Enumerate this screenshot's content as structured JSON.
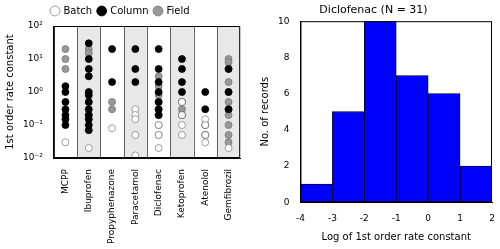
{
  "chart_data": [
    {
      "type": "scatter",
      "categories": [
        "MCPP",
        "Ibuprofen",
        "Propyphenazone",
        "Paracetamol",
        "Diclofenac",
        "Ketoprofen",
        "Atenolol",
        "Gemfibrozil"
      ],
      "y_label": "1st order rate constant",
      "log": "y",
      "grid": false,
      "legend": "top",
      "ylim": [
        0.01,
        100
      ],
      "yticks": [
        {
          "value": 0.01,
          "label": "10⁻²"
        },
        {
          "value": 0.1,
          "label": "10⁻¹"
        },
        {
          "value": 1,
          "label": "10⁰"
        },
        {
          "value": 10,
          "label": "10¹"
        },
        {
          "value": 100,
          "label": "10²"
        }
      ],
      "series": [
        {
          "name": "Batch",
          "color": "#ffffff",
          "marker": "circle",
          "x": [
            "MCPP",
            "Ibuprofen",
            "Propyphenazone",
            "Paracetamol",
            "Paracetamol",
            "Paracetamol",
            "Paracetamol",
            "Paracetamol",
            "Diclofenac",
            "Diclofenac",
            "Diclofenac",
            "Ketoprofen",
            "Ketoprofen",
            "Ketoprofen",
            "Ketoprofen",
            "Atenolol",
            "Atenolol",
            "Atenolol",
            "Atenolol",
            "Gemfibrozil"
          ],
          "values": [
            0.03,
            0.02,
            0.08,
            0.3,
            0.2,
            0.15,
            0.05,
            0.012,
            0.1,
            0.05,
            0.02,
            0.5,
            0.2,
            0.1,
            0.05,
            0.15,
            0.1,
            0.05,
            0.03,
            0.02
          ]
        },
        {
          "name": "Column",
          "color": "#000000",
          "marker": "circle",
          "x": [
            "MCPP",
            "MCPP",
            "MCPP",
            "MCPP",
            "MCPP",
            "MCPP",
            "MCPP",
            "Ibuprofen",
            "Ibuprofen",
            "Ibuprofen",
            "Ibuprofen",
            "Ibuprofen",
            "Ibuprofen",
            "Ibuprofen",
            "Ibuprofen",
            "Ibuprofen",
            "Ibuprofen",
            "Ibuprofen",
            "Ibuprofen",
            "Propyphenazone",
            "Propyphenazone",
            "Paracetamol",
            "Paracetamol",
            "Paracetamol",
            "Diclofenac",
            "Diclofenac",
            "Diclofenac",
            "Diclofenac",
            "Diclofenac",
            "Diclofenac",
            "Diclofenac",
            "Ketoprofen",
            "Ketoprofen",
            "Ketoprofen",
            "Ketoprofen",
            "Ketoprofen",
            "Ketoprofen",
            "Atenolol",
            "Atenolol",
            "Atenolol",
            "Atenolol",
            "Gemfibrozil",
            "Gemfibrozil",
            "Gemfibrozil"
          ],
          "values": [
            1.5,
            1,
            0.5,
            0.3,
            0.2,
            0.15,
            0.1,
            30,
            10,
            5,
            3,
            1,
            0.8,
            0.5,
            0.3,
            0.2,
            0.15,
            0.1,
            0.07,
            20,
            2,
            20,
            5,
            2,
            20,
            5,
            2,
            1,
            0.5,
            0.3,
            0.2,
            10,
            5,
            2,
            1,
            0.5,
            0.2,
            1,
            0.3,
            0.1,
            0.05,
            5,
            1,
            0.3
          ]
        },
        {
          "name": "Field",
          "color": "#999999",
          "marker": "circle",
          "x": [
            "MCPP",
            "MCPP",
            "MCPP",
            "Ibuprofen",
            "Ibuprofen",
            "Ibuprofen",
            "Ibuprofen",
            "Propyphenazone",
            "Propyphenazone",
            "Diclofenac",
            "Diclofenac",
            "Diclofenac",
            "Diclofenac",
            "Diclofenac",
            "Diclofenac",
            "Diclofenac",
            "Diclofenac",
            "Ketoprofen",
            "Gemfibrozil",
            "Gemfibrozil",
            "Gemfibrozil",
            "Gemfibrozil",
            "Gemfibrozil",
            "Gemfibrozil",
            "Gemfibrozil",
            "Gemfibrozil",
            "Gemfibrozil",
            "Gemfibrozil",
            "Gemfibrozil"
          ],
          "values": [
            20,
            10,
            5,
            20,
            15,
            0.5,
            0.2,
            0.5,
            0.3,
            3,
            1.5,
            0.8,
            0.5,
            0.3,
            0.2,
            0.1,
            0.05,
            0.3,
            10,
            8,
            5,
            2,
            1,
            0.5,
            0.3,
            0.2,
            0.1,
            0.05,
            0.03
          ]
        }
      ]
    },
    {
      "type": "histogram",
      "title": "Diclofenac (N = 31)",
      "x_label": "Log of 1st order rate constant",
      "y_label": "No. of records",
      "bins": [
        -4,
        -3,
        -2,
        -1,
        0,
        1,
        2
      ],
      "values": [
        1,
        5,
        10,
        7,
        6,
        2
      ],
      "color": "#0000ff",
      "grid": false,
      "xlim": [
        -4,
        2
      ],
      "xticks": [
        -4,
        -3,
        -2,
        -1,
        0,
        1,
        2
      ],
      "ylim": [
        0,
        10
      ],
      "yticks": [
        0,
        2,
        4,
        6,
        8,
        10
      ]
    }
  ]
}
